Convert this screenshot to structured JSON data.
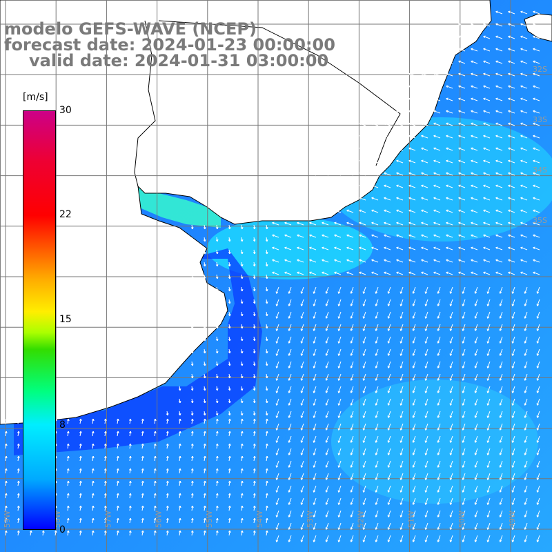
{
  "title": {
    "line1": "modelo GEFS-WAVE (NCEP)",
    "line2": "forecast date: 2024-01-23 00:00:00",
    "line3": "valid date: 2024-01-31 03:00:00"
  },
  "colorbar": {
    "unit": "[m/s]",
    "ticks": [
      "30",
      "22",
      "15",
      "8",
      "0"
    ],
    "colors": [
      "#0000ff",
      "#00aaff",
      "#00eeff",
      "#00ff7f",
      "#33dd00",
      "#ffee00",
      "#ff6600",
      "#ff0000",
      "#cc0088"
    ]
  },
  "map": {
    "land_color": "#ffffff",
    "coast_color": "#000000",
    "grid_color": "#888888",
    "lat_labels": [
      "32S",
      "33S",
      "34S",
      "35S"
    ],
    "lon_labels": [
      "59W",
      "58W",
      "57W",
      "56W",
      "55W",
      "54W",
      "53W",
      "52W",
      "51W",
      "50W",
      "49W"
    ]
  }
}
